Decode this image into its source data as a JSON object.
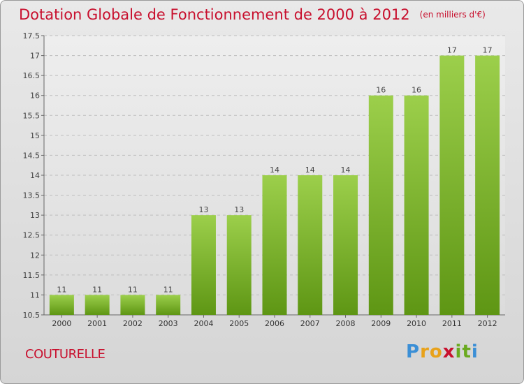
{
  "header": {
    "title": "Dotation Globale de Fonctionnement de 2000 à 2012",
    "subtitle": "(en milliers d'€)"
  },
  "footer": {
    "commune": "COUTURELLE",
    "logo_letters": [
      "P",
      "r",
      "o",
      "x",
      "i",
      "t",
      "i"
    ],
    "logo_colors": [
      "#3b8fd6",
      "#e8a21b",
      "#e8a21b",
      "#c8102e",
      "#6aaa1f",
      "#6aaa1f",
      "#3b8fd6"
    ]
  },
  "colors": {
    "title": "#c8102e",
    "bar_top": "#9ccf4b",
    "bar_bottom": "#5e9614",
    "grid": "#bdbdbd"
  },
  "chart_data": {
    "type": "bar",
    "title": "Dotation Globale de Fonctionnement de 2000 à 2012",
    "subtitle": "(en milliers d'€)",
    "xlabel": "",
    "ylabel": "",
    "categories": [
      "2000",
      "2001",
      "2002",
      "2003",
      "2004",
      "2005",
      "2006",
      "2007",
      "2008",
      "2009",
      "2010",
      "2011",
      "2012"
    ],
    "values": [
      11,
      11,
      11,
      11,
      13,
      13,
      14,
      14,
      14,
      16,
      16,
      17,
      17
    ],
    "data_labels": [
      "11",
      "11",
      "11",
      "11",
      "13",
      "13",
      "14",
      "14",
      "14",
      "16",
      "16",
      "17",
      "17"
    ],
    "ylim": [
      10.5,
      17.5
    ],
    "yticks": [
      10.5,
      11,
      11.5,
      12,
      12.5,
      13,
      13.5,
      14,
      14.5,
      15,
      15.5,
      16,
      16.5,
      17,
      17.5
    ],
    "ytick_labels": [
      "10.5",
      "11",
      "11.5",
      "12",
      "12.5",
      "13",
      "13.5",
      "14",
      "14.5",
      "15",
      "15.5",
      "16",
      "16.5",
      "17",
      "17.5"
    ],
    "grid": true,
    "legend": "none"
  }
}
